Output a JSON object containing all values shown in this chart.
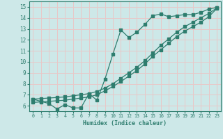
{
  "xlabel": "Humidex (Indice chaleur)",
  "bg_color": "#cde8e8",
  "grid_color": "#e8c8c8",
  "line_color": "#2e7d6e",
  "x_ticks": [
    0,
    1,
    2,
    3,
    4,
    5,
    6,
    7,
    8,
    9,
    10,
    11,
    12,
    13,
    14,
    15,
    16,
    17,
    18,
    19,
    20,
    21,
    22,
    23
  ],
  "y_ticks": [
    6,
    7,
    8,
    9,
    10,
    11,
    12,
    13,
    14,
    15
  ],
  "ylim": [
    5.5,
    15.5
  ],
  "xlim": [
    -0.5,
    23.5
  ],
  "line1_x": [
    0,
    1,
    2,
    3,
    4,
    5,
    6,
    7,
    8,
    9,
    10,
    11,
    12,
    13,
    14,
    15,
    16,
    17,
    18,
    19,
    20,
    21,
    22,
    23
  ],
  "line1_y": [
    6.6,
    6.4,
    6.2,
    5.7,
    6.1,
    5.8,
    5.8,
    7.1,
    6.5,
    8.4,
    10.7,
    12.9,
    12.2,
    12.7,
    13.4,
    14.2,
    14.35,
    14.1,
    14.2,
    14.3,
    14.3,
    14.5,
    14.8,
    14.95
  ],
  "line2_x": [
    0,
    1,
    2,
    3,
    4,
    5,
    6,
    7,
    8,
    9,
    10,
    11,
    12,
    13,
    14,
    15,
    16,
    17,
    18,
    19,
    20,
    21,
    22,
    23
  ],
  "line2_y": [
    6.6,
    6.65,
    6.7,
    6.75,
    6.8,
    6.9,
    7.0,
    7.1,
    7.3,
    7.6,
    8.0,
    8.5,
    9.0,
    9.5,
    10.1,
    10.8,
    11.5,
    12.1,
    12.7,
    13.2,
    13.6,
    14.0,
    14.4,
    14.9
  ],
  "line3_x": [
    0,
    1,
    2,
    3,
    4,
    5,
    6,
    7,
    8,
    9,
    10,
    11,
    12,
    13,
    14,
    15,
    16,
    17,
    18,
    19,
    20,
    21,
    22,
    23
  ],
  "line3_y": [
    6.3,
    6.35,
    6.4,
    6.45,
    6.5,
    6.6,
    6.7,
    6.8,
    7.0,
    7.35,
    7.75,
    8.2,
    8.7,
    9.2,
    9.8,
    10.5,
    11.1,
    11.7,
    12.3,
    12.8,
    13.2,
    13.6,
    14.1,
    14.85
  ]
}
